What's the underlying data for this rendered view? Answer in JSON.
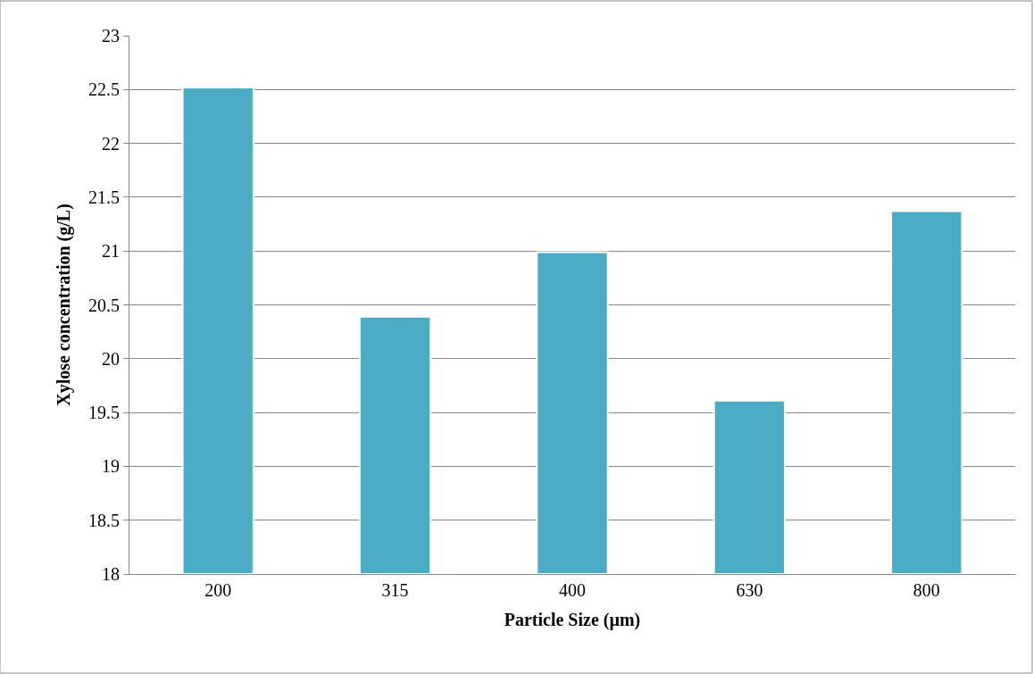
{
  "chart_data": {
    "type": "bar",
    "xlabel": "Particle Size (µm)",
    "ylabel": "Xylose concentration (g/L)",
    "categories": [
      "200",
      "315",
      "400",
      "630",
      "800"
    ],
    "values": [
      22.52,
      20.39,
      20.99,
      19.61,
      21.37
    ],
    "color": "#4bacc6",
    "ylim": [
      18,
      23
    ],
    "yticks": [
      18,
      18.5,
      19,
      19.5,
      20,
      20.5,
      21,
      21.5,
      22,
      22.5,
      23
    ],
    "grid": "y"
  }
}
